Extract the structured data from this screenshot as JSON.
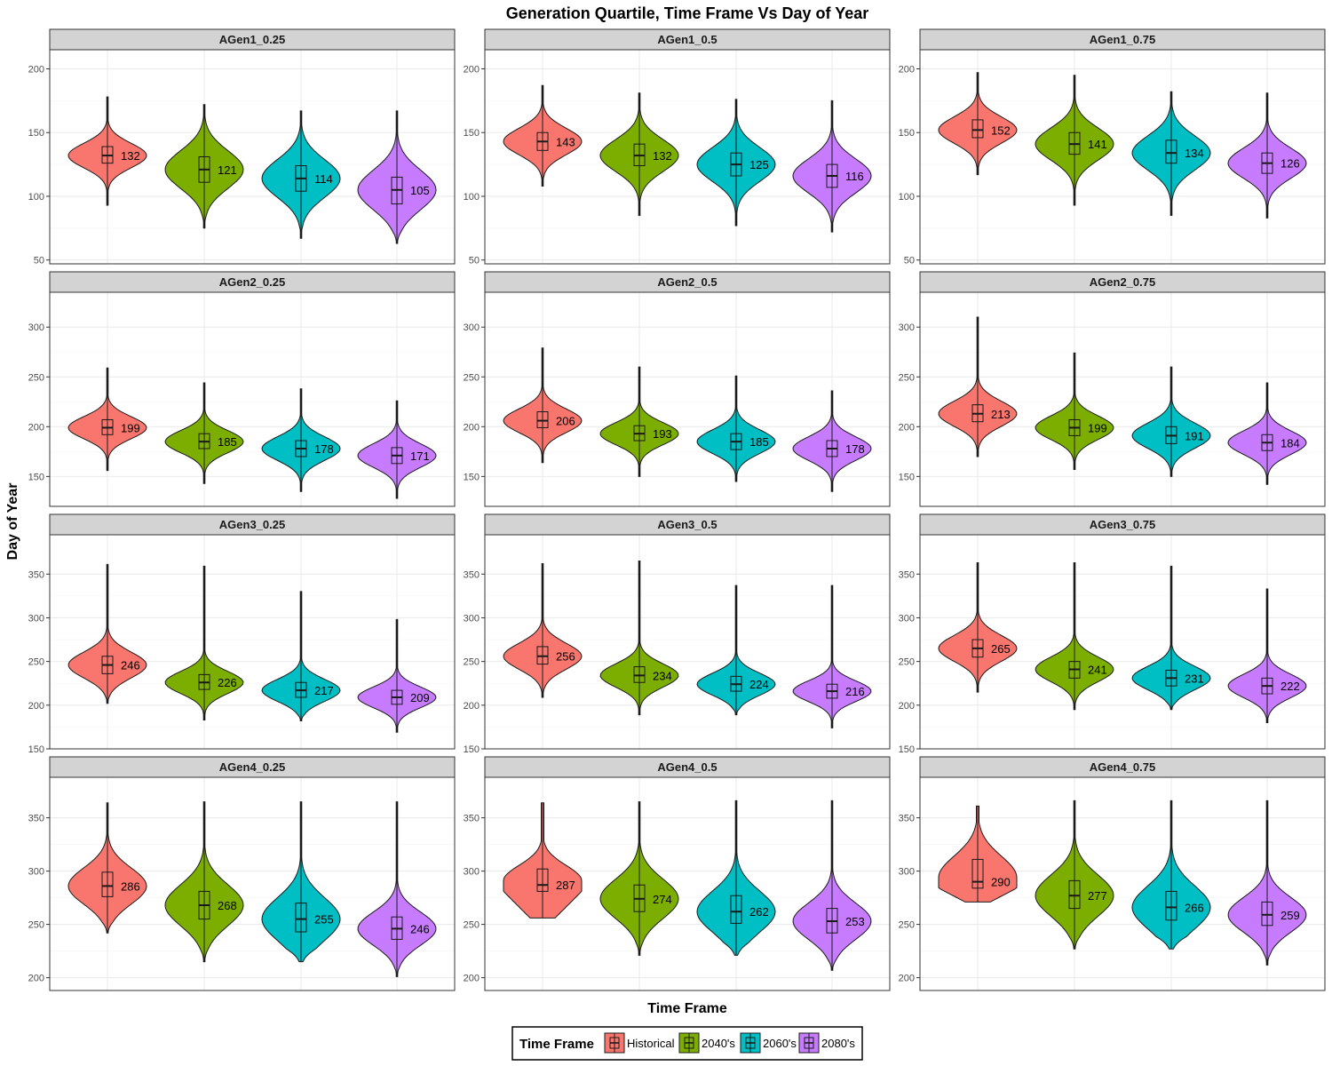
{
  "chart_data": {
    "type": "violin",
    "title": "Generation Quartile, Time Frame Vs Day of Year",
    "xlabel": "Time Frame",
    "ylabel": "Day of Year",
    "legend": {
      "title": "Time Frame",
      "placement": "bottom",
      "entries": [
        "Historical",
        "2040's",
        "2060's",
        "2080's"
      ]
    },
    "categories": [
      "Historical",
      "2040's",
      "2060's",
      "2080's"
    ],
    "colors": [
      "#F8766D",
      "#7CAE00",
      "#00BFC4",
      "#C77CFF"
    ],
    "grid": true,
    "rows": [
      {
        "ylim": [
          47,
          215
        ],
        "yticks": [
          50,
          100,
          150,
          200
        ]
      },
      {
        "ylim": [
          120,
          335
        ],
        "yticks": [
          150,
          200,
          250,
          300
        ]
      },
      {
        "ylim": [
          150,
          395
        ],
        "yticks": [
          150,
          200,
          250,
          300,
          350
        ]
      },
      {
        "ylim": [
          188,
          388
        ],
        "yticks": [
          200,
          250,
          300,
          350
        ]
      }
    ],
    "panels": [
      {
        "label": "AGen1_0.25",
        "row": 0,
        "col": 0,
        "series": [
          {
            "name": "Historical",
            "min": 93,
            "q1": 126,
            "median": 132,
            "q3": 139,
            "max": 178,
            "label": "132",
            "shape": "sym"
          },
          {
            "name": "2040's",
            "min": 75,
            "q1": 111,
            "median": 121,
            "q3": 131,
            "max": 172,
            "label": "121",
            "shape": "sym"
          },
          {
            "name": "2060's",
            "min": 67,
            "q1": 104,
            "median": 114,
            "q3": 124,
            "max": 167,
            "label": "114",
            "shape": "sym"
          },
          {
            "name": "2080's",
            "min": 63,
            "q1": 94,
            "median": 105,
            "q3": 115,
            "max": 167,
            "label": "105",
            "shape": "sym"
          }
        ]
      },
      {
        "label": "AGen1_0.5",
        "row": 0,
        "col": 1,
        "series": [
          {
            "name": "Historical",
            "min": 108,
            "q1": 136,
            "median": 143,
            "q3": 150,
            "max": 187,
            "label": "143",
            "shape": "sym"
          },
          {
            "name": "2040's",
            "min": 85,
            "q1": 124,
            "median": 132,
            "q3": 141,
            "max": 181,
            "label": "132",
            "shape": "sym"
          },
          {
            "name": "2060's",
            "min": 77,
            "q1": 116,
            "median": 125,
            "q3": 134,
            "max": 176,
            "label": "125",
            "shape": "sym"
          },
          {
            "name": "2080's",
            "min": 72,
            "q1": 107,
            "median": 116,
            "q3": 125,
            "max": 175,
            "label": "116",
            "shape": "sym"
          }
        ]
      },
      {
        "label": "AGen1_0.75",
        "row": 0,
        "col": 2,
        "series": [
          {
            "name": "Historical",
            "min": 117,
            "q1": 146,
            "median": 152,
            "q3": 160,
            "max": 197,
            "label": "152",
            "shape": "sym"
          },
          {
            "name": "2040's",
            "min": 93,
            "q1": 133,
            "median": 141,
            "q3": 150,
            "max": 195,
            "label": "141",
            "shape": "sym"
          },
          {
            "name": "2060's",
            "min": 85,
            "q1": 126,
            "median": 134,
            "q3": 144,
            "max": 182,
            "label": "134",
            "shape": "sym"
          },
          {
            "name": "2080's",
            "min": 83,
            "q1": 118,
            "median": 126,
            "q3": 134,
            "max": 181,
            "label": "126",
            "shape": "sym"
          }
        ]
      },
      {
        "label": "AGen2_0.25",
        "row": 1,
        "col": 0,
        "series": [
          {
            "name": "Historical",
            "min": 156,
            "q1": 192,
            "median": 199,
            "q3": 207,
            "max": 259,
            "label": "199",
            "shape": "sym"
          },
          {
            "name": "2040's",
            "min": 143,
            "q1": 178,
            "median": 185,
            "q3": 193,
            "max": 244,
            "label": "185",
            "shape": "sym"
          },
          {
            "name": "2060's",
            "min": 135,
            "q1": 170,
            "median": 178,
            "q3": 186,
            "max": 238,
            "label": "178",
            "shape": "sym"
          },
          {
            "name": "2080's",
            "min": 128,
            "q1": 163,
            "median": 171,
            "q3": 179,
            "max": 226,
            "label": "171",
            "shape": "sym"
          }
        ]
      },
      {
        "label": "AGen2_0.5",
        "row": 1,
        "col": 1,
        "series": [
          {
            "name": "Historical",
            "min": 164,
            "q1": 199,
            "median": 206,
            "q3": 215,
            "max": 279,
            "label": "206",
            "shape": "sym"
          },
          {
            "name": "2040's",
            "min": 150,
            "q1": 186,
            "median": 193,
            "q3": 201,
            "max": 260,
            "label": "193",
            "shape": "sym"
          },
          {
            "name": "2060's",
            "min": 145,
            "q1": 177,
            "median": 185,
            "q3": 193,
            "max": 251,
            "label": "185",
            "shape": "sym"
          },
          {
            "name": "2080's",
            "min": 135,
            "q1": 170,
            "median": 178,
            "q3": 186,
            "max": 236,
            "label": "178",
            "shape": "sym"
          }
        ]
      },
      {
        "label": "AGen2_0.75",
        "row": 1,
        "col": 2,
        "series": [
          {
            "name": "Historical",
            "min": 170,
            "q1": 205,
            "median": 213,
            "q3": 222,
            "max": 310,
            "label": "213",
            "shape": "sym"
          },
          {
            "name": "2040's",
            "min": 157,
            "q1": 191,
            "median": 199,
            "q3": 207,
            "max": 274,
            "label": "199",
            "shape": "sym"
          },
          {
            "name": "2060's",
            "min": 150,
            "q1": 183,
            "median": 191,
            "q3": 200,
            "max": 260,
            "label": "191",
            "shape": "sym"
          },
          {
            "name": "2080's",
            "min": 142,
            "q1": 176,
            "median": 184,
            "q3": 192,
            "max": 244,
            "label": "184",
            "shape": "sym"
          }
        ]
      },
      {
        "label": "AGen3_0.25",
        "row": 2,
        "col": 0,
        "series": [
          {
            "name": "Historical",
            "min": 202,
            "q1": 236,
            "median": 246,
            "q3": 256,
            "max": 361,
            "label": "246",
            "shape": "sym"
          },
          {
            "name": "2040's",
            "min": 183,
            "q1": 218,
            "median": 226,
            "q3": 235,
            "max": 359,
            "label": "226",
            "shape": "sym"
          },
          {
            "name": "2060's",
            "min": 182,
            "q1": 209,
            "median": 217,
            "q3": 226,
            "max": 330,
            "label": "217",
            "shape": "sym"
          },
          {
            "name": "2080's",
            "min": 169,
            "q1": 201,
            "median": 209,
            "q3": 217,
            "max": 298,
            "label": "209",
            "shape": "sym"
          }
        ]
      },
      {
        "label": "AGen3_0.5",
        "row": 2,
        "col": 1,
        "series": [
          {
            "name": "Historical",
            "min": 209,
            "q1": 247,
            "median": 256,
            "q3": 267,
            "max": 362,
            "label": "256",
            "shape": "sym"
          },
          {
            "name": "2040's",
            "min": 189,
            "q1": 226,
            "median": 234,
            "q3": 244,
            "max": 365,
            "label": "234",
            "shape": "sym"
          },
          {
            "name": "2060's",
            "min": 189,
            "q1": 216,
            "median": 224,
            "q3": 233,
            "max": 337,
            "label": "224",
            "shape": "sym"
          },
          {
            "name": "2080's",
            "min": 174,
            "q1": 208,
            "median": 216,
            "q3": 224,
            "max": 337,
            "label": "216",
            "shape": "sym"
          }
        ]
      },
      {
        "label": "AGen3_0.75",
        "row": 2,
        "col": 2,
        "series": [
          {
            "name": "Historical",
            "min": 215,
            "q1": 255,
            "median": 265,
            "q3": 275,
            "max": 363,
            "label": "265",
            "shape": "sym"
          },
          {
            "name": "2040's",
            "min": 195,
            "q1": 231,
            "median": 241,
            "q3": 250,
            "max": 363,
            "label": "241",
            "shape": "sym"
          },
          {
            "name": "2060's",
            "min": 195,
            "q1": 222,
            "median": 231,
            "q3": 240,
            "max": 359,
            "label": "231",
            "shape": "sym"
          },
          {
            "name": "2080's",
            "min": 180,
            "q1": 213,
            "median": 222,
            "q3": 231,
            "max": 333,
            "label": "222",
            "shape": "sym"
          }
        ]
      },
      {
        "label": "AGen4_0.25",
        "row": 3,
        "col": 0,
        "series": [
          {
            "name": "Historical",
            "min": 242,
            "q1": 276,
            "median": 286,
            "q3": 299,
            "max": 364,
            "label": "286",
            "shape": "sym"
          },
          {
            "name": "2040's",
            "min": 215,
            "q1": 255,
            "median": 268,
            "q3": 281,
            "max": 365,
            "label": "268",
            "shape": "sym"
          },
          {
            "name": "2060's",
            "min": 215,
            "q1": 243,
            "median": 255,
            "q3": 270,
            "max": 365,
            "label": "255",
            "shape": "sym"
          },
          {
            "name": "2080's",
            "min": 201,
            "q1": 236,
            "median": 246,
            "q3": 257,
            "max": 365,
            "label": "246",
            "shape": "sym"
          }
        ]
      },
      {
        "label": "AGen4_0.5",
        "row": 3,
        "col": 1,
        "series": [
          {
            "name": "Historical",
            "min": 256,
            "q1": 281,
            "median": 287,
            "q3": 302,
            "max": 364,
            "label": "287",
            "shape": "flat"
          },
          {
            "name": "2040's",
            "min": 221,
            "q1": 262,
            "median": 274,
            "q3": 287,
            "max": 365,
            "label": "274",
            "shape": "sym"
          },
          {
            "name": "2060's",
            "min": 221,
            "q1": 251,
            "median": 262,
            "q3": 277,
            "max": 366,
            "label": "262",
            "shape": "sym"
          },
          {
            "name": "2080's",
            "min": 207,
            "q1": 242,
            "median": 253,
            "q3": 265,
            "max": 366,
            "label": "253",
            "shape": "sym"
          }
        ]
      },
      {
        "label": "AGen4_0.75",
        "row": 3,
        "col": 2,
        "series": [
          {
            "name": "Historical",
            "min": 271,
            "q1": 284,
            "median": 290,
            "q3": 311,
            "max": 361,
            "label": "290",
            "shape": "flat"
          },
          {
            "name": "2040's",
            "min": 227,
            "q1": 265,
            "median": 277,
            "q3": 291,
            "max": 366,
            "label": "277",
            "shape": "sym"
          },
          {
            "name": "2060's",
            "min": 227,
            "q1": 254,
            "median": 266,
            "q3": 281,
            "max": 366,
            "label": "266",
            "shape": "sym"
          },
          {
            "name": "2080's",
            "min": 212,
            "q1": 249,
            "median": 259,
            "q3": 271,
            "max": 366,
            "label": "259",
            "shape": "sym"
          }
        ]
      }
    ]
  }
}
